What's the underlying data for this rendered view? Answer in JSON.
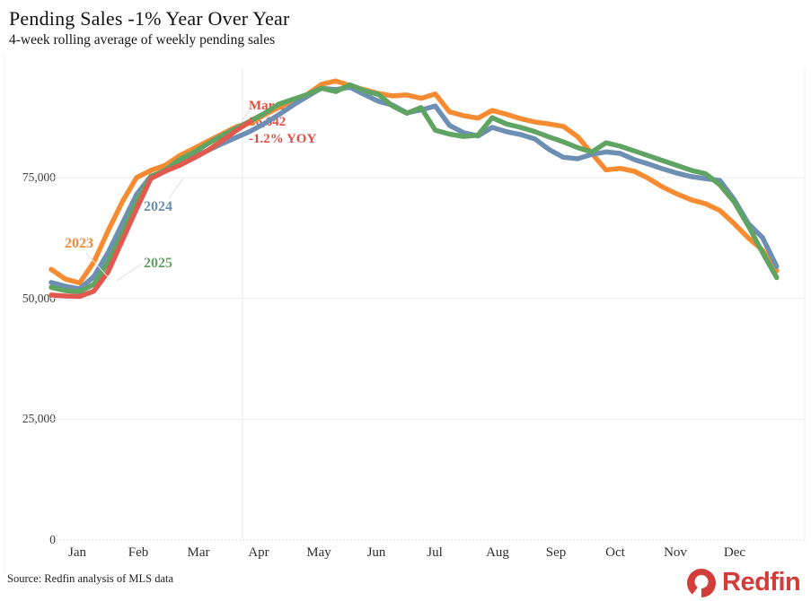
{
  "page": {
    "title": "Pending Sales -1% Year Over Year",
    "subtitle": "4-week rolling average of weekly pending sales"
  },
  "axis": {
    "y_ticks": [
      "75,000",
      "50,000",
      "25,000",
      "0"
    ],
    "months": [
      "Jan",
      "Feb",
      "Mar",
      "Apr",
      "May",
      "Jun",
      "Jul",
      "Aug",
      "Sep",
      "Oct",
      "Nov",
      "Dec"
    ]
  },
  "series_labels": {
    "y2023": "2023",
    "y2024": "2024",
    "y2025": "2025"
  },
  "annotation": {
    "date": "Mar. 29",
    "value": "86,642",
    "yoy": "-1.2% YOY",
    "color": "#E04F43"
  },
  "footer": {
    "source": "Source: Redfin analysis of MLS data",
    "brand": "Redfin"
  },
  "colors": {
    "c2023": "#F78B31",
    "c2024": "#6D8FB4",
    "c2025": "#5FA463",
    "latest": "#E05A50",
    "brand_red": "#D23C39",
    "grid": "#ebebeb"
  },
  "chart_data": {
    "type": "line",
    "title": "Pending Sales -1% Year Over Year",
    "subtitle": "4-week rolling average of weekly pending sales",
    "x_unit": "week of year (52 weekly points per series)",
    "xlabels": [
      "Jan",
      "Feb",
      "Mar",
      "Apr",
      "May",
      "Jun",
      "Jul",
      "Aug",
      "Sep",
      "Oct",
      "Nov",
      "Dec"
    ],
    "ylabel": "pending sales (4-week rolling average)",
    "ylim": [
      0,
      100000
    ],
    "y_ticks_values": [
      0,
      25000,
      50000,
      75000
    ],
    "grid": "horizontal",
    "legend_position": "inline-labels-on-chart",
    "annotation": {
      "text": [
        "Mar. 29",
        "86,642",
        "-1.2% YOY"
      ],
      "attached_to": "latest",
      "value": 86642
    },
    "series": [
      {
        "name": "2023",
        "color": "#F78B31",
        "values": [
          56000,
          54000,
          53200,
          57500,
          64000,
          70000,
          75000,
          76500,
          77500,
          79500,
          81000,
          82500,
          84000,
          85500,
          86300,
          88000,
          89500,
          91000,
          92200,
          94300,
          95000,
          94000,
          93200,
          92400,
          91900,
          92100,
          91400,
          92300,
          88600,
          87800,
          87300,
          88900,
          88100,
          87200,
          86500,
          86100,
          85600,
          83500,
          80000,
          76600,
          76900,
          76300,
          74800,
          73000,
          71600,
          70400,
          69600,
          68200,
          65500,
          62500,
          60000,
          55700
        ]
      },
      {
        "name": "2024",
        "color": "#6D8FB4",
        "values": [
          53300,
          52500,
          52000,
          54500,
          59500,
          65500,
          71500,
          75300,
          76300,
          77800,
          79300,
          80600,
          82000,
          83300,
          84600,
          86200,
          88000,
          90000,
          91800,
          93500,
          93200,
          93700,
          92200,
          90800,
          90000,
          88400,
          89000,
          89800,
          85800,
          84300,
          83600,
          85400,
          84500,
          83900,
          83000,
          80800,
          79200,
          78900,
          79800,
          80300,
          80000,
          78700,
          77800,
          76800,
          75900,
          75200,
          74800,
          74400,
          70500,
          65500,
          62600,
          56600
        ]
      },
      {
        "name": "2025",
        "color": "#5FA463",
        "values": [
          52300,
          51600,
          51400,
          52900,
          57500,
          63500,
          70000,
          75200,
          76500,
          78700,
          80200,
          82000,
          83700,
          85200,
          86700,
          88300,
          90200,
          91200,
          92200,
          93500,
          92800,
          94200,
          93000,
          92200,
          89800,
          88300,
          89500,
          84800,
          84000,
          83500,
          83800,
          87400,
          86100,
          85400,
          84500,
          83400,
          82400,
          81200,
          80300,
          82200,
          81500,
          80500,
          79500,
          78500,
          77500,
          76500,
          75800,
          73500,
          70000,
          65000,
          59500,
          54300
        ]
      },
      {
        "name": "latest",
        "color": "#E05A50",
        "values": [
          50700,
          50500,
          50400,
          51500,
          55500,
          62000,
          68500,
          74800,
          76300,
          77500,
          79000,
          80600,
          82600,
          84700,
          86642
        ]
      }
    ]
  }
}
